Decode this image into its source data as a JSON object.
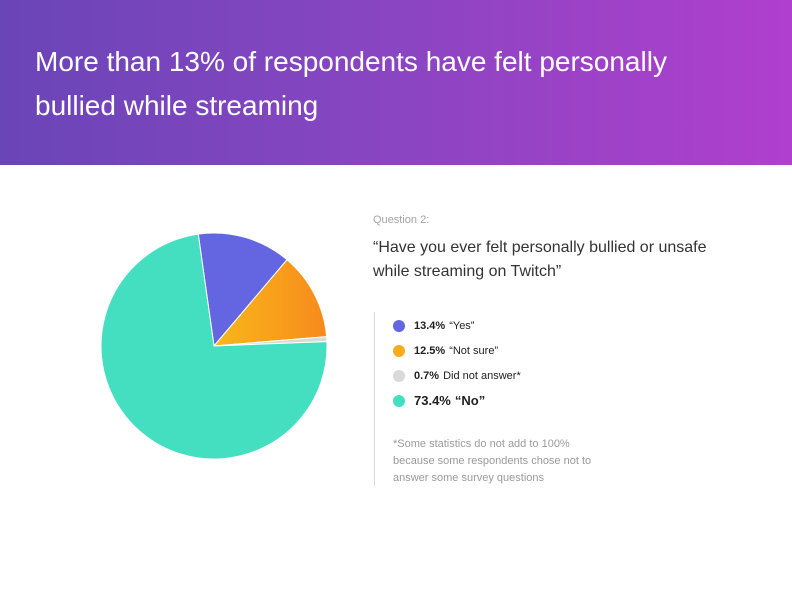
{
  "header": {
    "title": "More than 13% of respondents have felt personally bullied while streaming",
    "gradient": [
      "#6a45b8",
      "#b03fce"
    ]
  },
  "question": {
    "label": "Question 2:",
    "text": "“Have you ever felt personally bullied or unsafe while streaming on Twitch”"
  },
  "legend": [
    {
      "pct": "13.4%",
      "label": "“Yes”",
      "color": "#6366e0"
    },
    {
      "pct": "12.5%",
      "label": "“Not sure”",
      "color": "#f8ac1a"
    },
    {
      "pct": "0.7%",
      "label": "Did not answer*",
      "color": "#d9d9d9"
    },
    {
      "pct": "73.4%",
      "label": "“No”",
      "color": "#44dfc1"
    }
  ],
  "footnote": "*Some statistics do not add to 100% because some respondents chose not to answer some survey questions",
  "chart_data": {
    "type": "pie",
    "title": "",
    "slices": [
      {
        "label": "“Yes”",
        "value": 13.4,
        "color": "#6366e0"
      },
      {
        "label": "“Not sure”",
        "value": 12.5,
        "color": "#f8ac1a"
      },
      {
        "label": "Did not answer*",
        "value": 0.7,
        "color": "#d9d9d9"
      },
      {
        "label": "“No”",
        "value": 73.4,
        "color": "#44dfc1"
      }
    ],
    "legend_position": "right"
  }
}
